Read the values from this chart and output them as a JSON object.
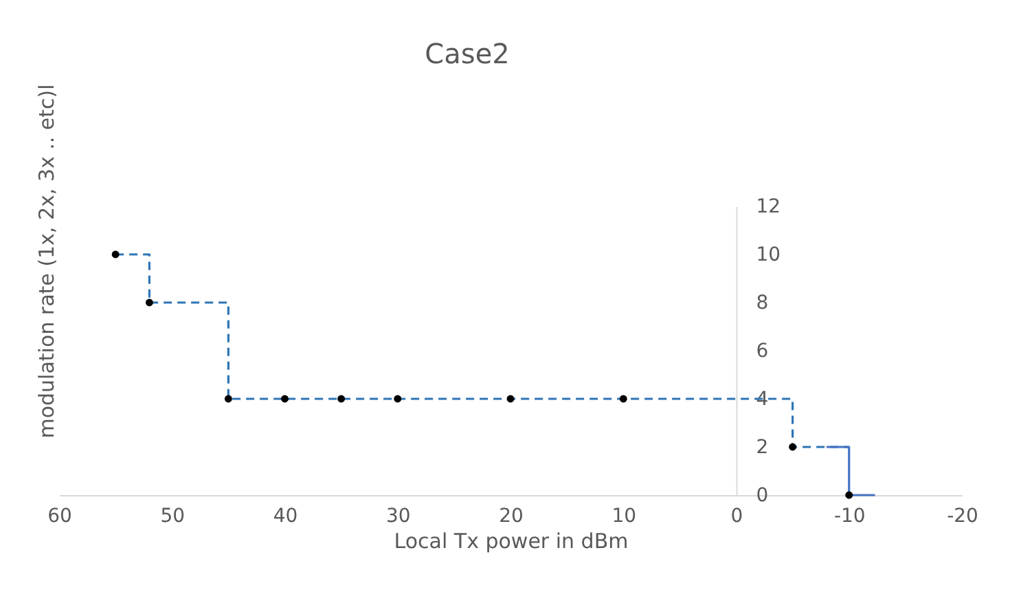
{
  "chart_data": {
    "type": "step",
    "title": "Case2",
    "xlabel": "Local Tx power in dBm",
    "ylabel": "modulation rate (1x, 2x, 3x .. etc)l",
    "xlim": [
      60,
      -20
    ],
    "xticks": [
      60,
      50,
      40,
      30,
      20,
      10,
      0,
      -10,
      -20
    ],
    "ylim": [
      0,
      12
    ],
    "yticks": [
      0,
      2,
      4,
      6,
      8,
      10,
      12
    ],
    "grid": false,
    "series": [
      {
        "color": "#2e75b6",
        "line_style": "dashed",
        "marker": "none",
        "x": [
          55,
          52,
          45,
          40,
          35,
          30,
          20,
          10,
          -5,
          -10
        ],
        "values": [
          10,
          8,
          4,
          4,
          4,
          4,
          4,
          4,
          2,
          2
        ]
      },
      {
        "color": "#4472c4",
        "line_style": "solid",
        "marker": "none",
        "x": [
          -8,
          -10,
          -12.3
        ],
        "values": [
          2,
          0,
          0
        ]
      },
      {
        "type": "scatter",
        "color": "#000000",
        "marker": "circle",
        "x": [
          55,
          52,
          45,
          40,
          35,
          30,
          20,
          10,
          -5,
          -10
        ],
        "values": [
          10,
          8,
          4,
          4,
          4,
          4,
          4,
          4,
          2,
          0
        ]
      }
    ]
  }
}
